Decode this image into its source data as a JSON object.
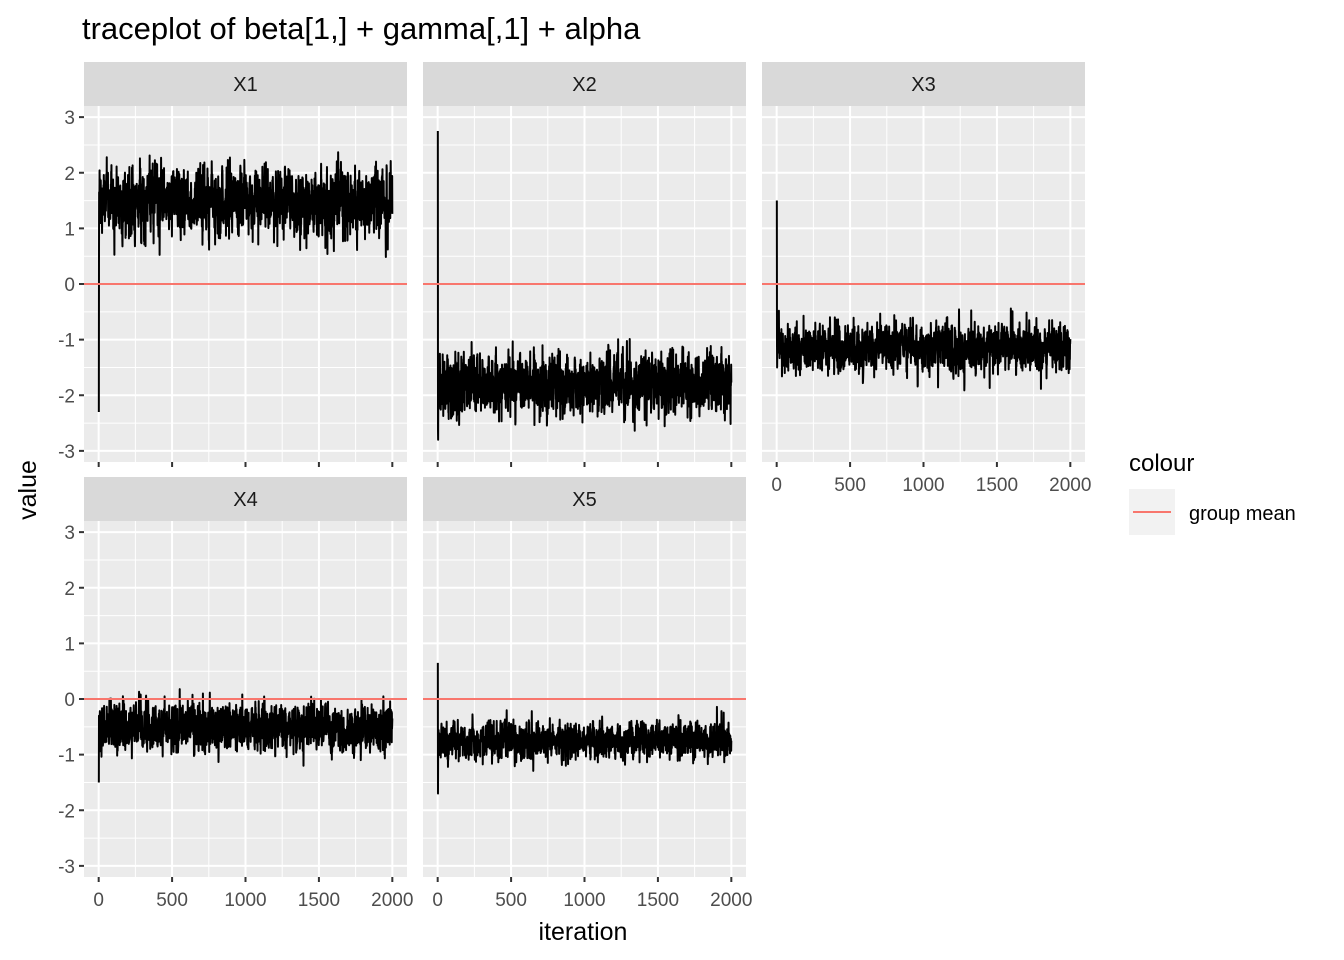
{
  "chart_data": {
    "type": "line",
    "title": "traceplot of beta[1,] + gamma[,1] + alpha",
    "xlabel": "iteration",
    "ylabel": "value",
    "xlim": [
      -100,
      2100
    ],
    "ylim": [
      -3.2,
      3.2
    ],
    "x_ticks": [
      0,
      500,
      1000,
      1500,
      2000
    ],
    "y_ticks": [
      -3,
      -2,
      -1,
      0,
      1,
      2,
      3
    ],
    "grid": true,
    "legend": {
      "title": "colour",
      "position": "right",
      "entries": [
        {
          "label": "group mean",
          "color": "#F8766D"
        }
      ]
    },
    "panels": [
      {
        "name": "X1",
        "group_mean": 0,
        "start_values": [
          -2.3,
          0.4,
          1.65
        ],
        "mean": 1.5,
        "sd": 0.28,
        "min_observed": 0.3,
        "max_observed": 2.6
      },
      {
        "name": "X2",
        "group_mean": 0,
        "start_values": [
          2.75,
          -2.6,
          -2.8
        ],
        "mean": -1.8,
        "sd": 0.25,
        "min_observed": -2.7,
        "max_observed": -0.8
      },
      {
        "name": "X3",
        "group_mean": 0,
        "start_values": [
          1.5,
          -1.0,
          -1.5
        ],
        "mean": -1.15,
        "sd": 0.2,
        "min_observed": -2.1,
        "max_observed": -0.2
      },
      {
        "name": "X4",
        "group_mean": 0,
        "start_values": [
          -1.5,
          -0.3
        ],
        "mean": -0.5,
        "sd": 0.2,
        "min_observed": -1.2,
        "max_observed": 0.3
      },
      {
        "name": "X5",
        "group_mean": 0,
        "start_values": [
          0.65,
          -1.7
        ],
        "mean": -0.75,
        "sd": 0.15,
        "min_observed": -1.4,
        "max_observed": -0.05
      }
    ],
    "n_iterations": 2000,
    "colors": {
      "trace": "#000000",
      "mean_line": "#F8766D",
      "panel_bg": "#EBEBEB",
      "strip_bg": "#D9D9D9",
      "grid": "#FFFFFF"
    }
  }
}
